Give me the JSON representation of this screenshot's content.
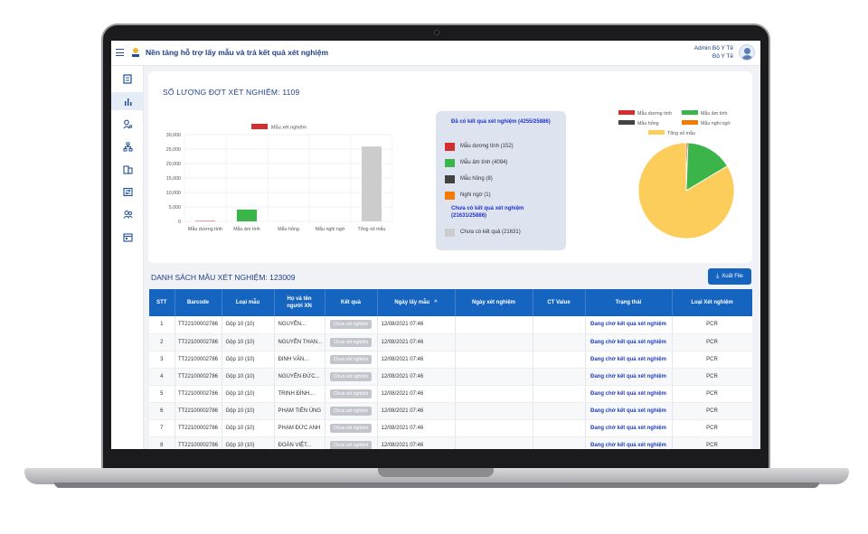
{
  "app": {
    "title": "Nền tảng hỗ trợ lấy mẫu và trả kết quả xét nghiệm",
    "user_name": "Admin Bộ Y Tế",
    "user_org": "Bộ Y Tế"
  },
  "sidebar": {
    "items": [
      {
        "icon": "dashboard-icon"
      },
      {
        "icon": "bar-chart-icon",
        "active": true
      },
      {
        "icon": "user-search-icon"
      },
      {
        "icon": "hierarchy-icon"
      },
      {
        "icon": "building-icon"
      },
      {
        "icon": "transfer-icon"
      },
      {
        "icon": "users-icon"
      },
      {
        "icon": "calendar-icon"
      }
    ]
  },
  "stats": {
    "title": "SỐ LƯỢNG ĐỢT XÉT NGHIỆM: 1109"
  },
  "chart_data": [
    {
      "type": "bar",
      "legend": "Mẫu xét nghiệm",
      "categories": [
        "Mẫu dương tính",
        "Mẫu âm tính",
        "Mẫu hỏng",
        "Mẫu nghi ngờ",
        "Tổng số mẫu"
      ],
      "values": [
        152,
        4094,
        8,
        1,
        25886
      ],
      "colors": [
        "#d32f2f",
        "#3bb54a",
        "#424242",
        "#f57c00",
        "#cccccc"
      ],
      "y_ticks": [
        "30,000",
        "25,000",
        "20,000",
        "15,000",
        "10,000",
        "5,000",
        "0"
      ],
      "ylim": [
        0,
        30000
      ],
      "grid": true
    },
    {
      "type": "pie",
      "legend": [
        {
          "label": "Mẫu dương tính",
          "color": "#d32f2f"
        },
        {
          "label": "Mẫu âm tính",
          "color": "#3bb54a"
        },
        {
          "label": "Mẫu hỏng",
          "color": "#424242"
        },
        {
          "label": "Mẫu nghi ngờ",
          "color": "#f57c00"
        },
        {
          "label": "Tổng số mẫu",
          "color": "#fccd5a"
        }
      ],
      "slices": [
        {
          "label": "Mẫu dương tính",
          "value": 152,
          "color": "#d32f2f"
        },
        {
          "label": "Mẫu âm tính",
          "value": 4094,
          "color": "#3bb54a"
        },
        {
          "label": "Mẫu hỏng",
          "value": 8,
          "color": "#424242"
        },
        {
          "label": "Mẫu nghi ngờ",
          "value": 1,
          "color": "#f57c00"
        },
        {
          "label": "Tổng số mẫu",
          "value": 21631,
          "color": "#fccd5a"
        }
      ]
    }
  ],
  "summary": {
    "has_result_title": "Đã có kết quả xét nghiệm (4255/25886)",
    "has_result_items": [
      {
        "label": "Mẫu dương tính (152)",
        "color": "#d32f2f"
      },
      {
        "label": "Mẫu âm tính (4094)",
        "color": "#3bb54a"
      },
      {
        "label": "Mẫu hỏng (8)",
        "color": "#424242"
      },
      {
        "label": "Nghi ngờ (1)",
        "color": "#f57c00"
      }
    ],
    "no_result_title": "Chưa có kết quả xét nghiệm (21631/25886)",
    "no_result_items": [
      {
        "label": "Chưa có kết quả (21631)",
        "color": "#cccccc"
      }
    ]
  },
  "list": {
    "title": "DANH SÁCH MẪU XÉT NGHIỆM: 123009",
    "export_label": "Xuất File",
    "columns": [
      "STT",
      "Barcode",
      "Loại mẫu",
      "Họ và tên người XN",
      "Kết quả",
      "Ngày lấy mẫu",
      "Ngày xét nghiệm",
      "CT Value",
      "Trạng thái",
      "Loại Xét nghiệm"
    ],
    "sort_indicator": "^",
    "rows": [
      {
        "stt": "1",
        "barcode": "TT22100002786",
        "type": "Gộp 10 (10)",
        "name": "NGUYỄN...",
        "result": "Chưa xét nghiệm",
        "sample_date": "12/08/2021 07:46",
        "test_date": "",
        "ct": "",
        "status": "Đang chờ kết quả xét nghiệm",
        "test_type": "PCR"
      },
      {
        "stt": "2",
        "barcode": "TT22100002786",
        "type": "Gộp 10 (10)",
        "name": "NGUYỄN THAN...",
        "result": "Chưa xét nghiệm",
        "sample_date": "12/08/2021 07:46",
        "test_date": "",
        "ct": "",
        "status": "Đang chờ kết quả xét nghiệm",
        "test_type": "PCR"
      },
      {
        "stt": "3",
        "barcode": "TT22100002786",
        "type": "Gộp 10 (10)",
        "name": "ĐINH VĂN...",
        "result": "Chưa xét nghiệm",
        "sample_date": "12/08/2021 07:46",
        "test_date": "",
        "ct": "",
        "status": "Đang chờ kết quả xét nghiệm",
        "test_type": "PCR"
      },
      {
        "stt": "4",
        "barcode": "TT22100002786",
        "type": "Gộp 10 (10)",
        "name": "NGUYỄN ĐỨC...",
        "result": "Chưa xét nghiệm",
        "sample_date": "12/08/2021 07:46",
        "test_date": "",
        "ct": "",
        "status": "Đang chờ kết quả xét nghiệm",
        "test_type": "PCR"
      },
      {
        "stt": "5",
        "barcode": "TT22100002786",
        "type": "Gộp 10 (10)",
        "name": "TRỊNH ĐÌNH...",
        "result": "Chưa xét nghiệm",
        "sample_date": "12/08/2021 07:46",
        "test_date": "",
        "ct": "",
        "status": "Đang chờ kết quả xét nghiệm",
        "test_type": "PCR"
      },
      {
        "stt": "6",
        "barcode": "TT22100002786",
        "type": "Gộp 10 (10)",
        "name": "PHẠM TIẾN ÚNG",
        "result": "Chưa xét nghiệm",
        "sample_date": "12/08/2021 07:46",
        "test_date": "",
        "ct": "",
        "status": "Đang chờ kết quả xét nghiệm",
        "test_type": "PCR"
      },
      {
        "stt": "7",
        "barcode": "TT22100002786",
        "type": "Gộp 10 (10)",
        "name": "PHẠM ĐỨC ANH",
        "result": "Chưa xét nghiệm",
        "sample_date": "12/08/2021 07:46",
        "test_date": "",
        "ct": "",
        "status": "Đang chờ kết quả xét nghiệm",
        "test_type": "PCR"
      },
      {
        "stt": "8",
        "barcode": "TT22100002786",
        "type": "Gộp 10 (10)",
        "name": "ĐOÀN VIỆT...",
        "result": "Chưa xét nghiệm",
        "sample_date": "12/08/2021 07:46",
        "test_date": "",
        "ct": "",
        "status": "Đang chờ kết quả xét nghiệm",
        "test_type": "PCR"
      }
    ]
  },
  "colors": {
    "primary": "#1565c0",
    "title": "#1f3f86",
    "status_link": "#1f3fb9"
  }
}
